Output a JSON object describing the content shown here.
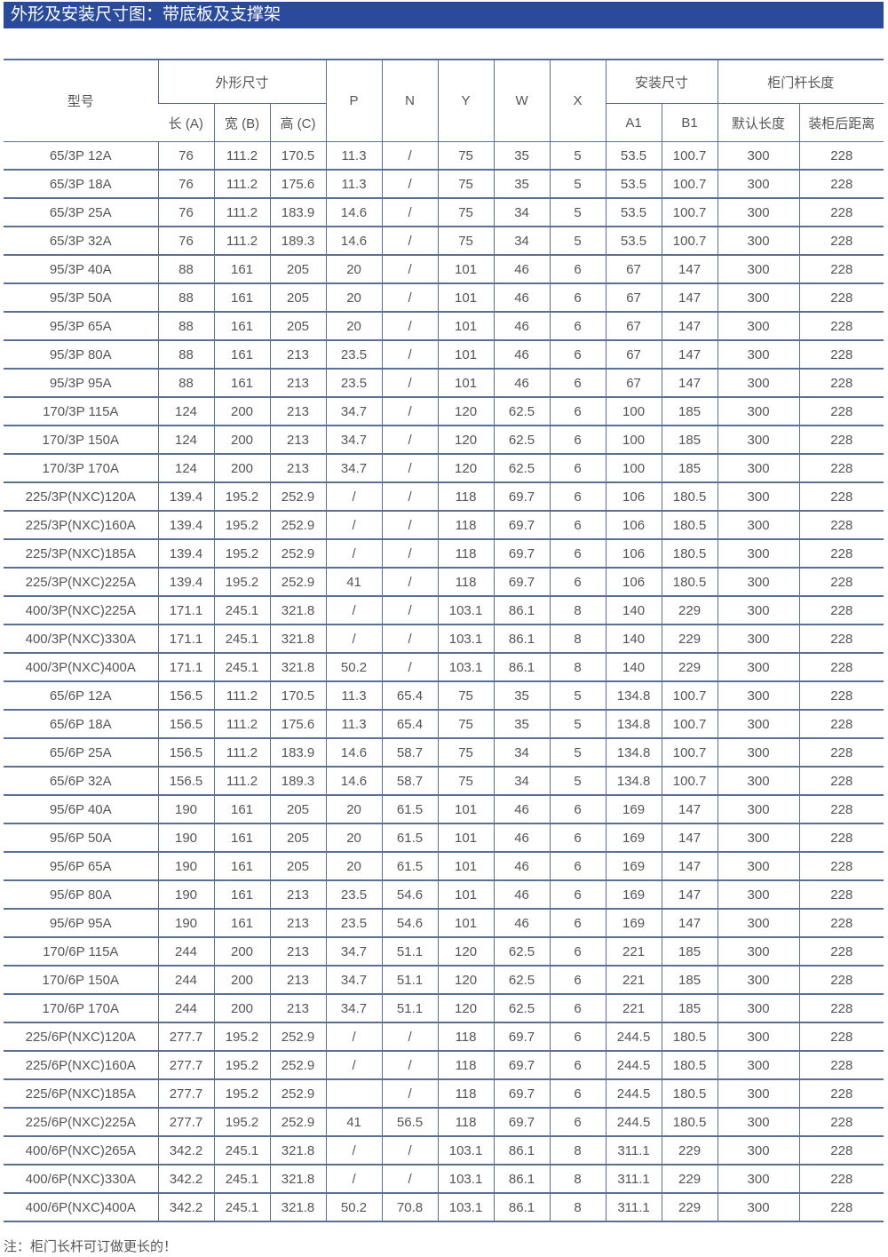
{
  "title": "外形及安装尺寸图：带底板及支撑架",
  "header": {
    "model": "型号",
    "outer": "外形尺寸",
    "length": "长 (A)",
    "width": "宽 (B)",
    "height": "高 (C)",
    "P": "P",
    "N": "N",
    "Y": "Y",
    "W": "W",
    "X": "X",
    "install": "安装尺寸",
    "A1": "A1",
    "B1": "B1",
    "rod": "柜门杆长度",
    "default_len": "默认长度",
    "rear_dist": "装柜后距离"
  },
  "rows": [
    [
      "65/3P 12A",
      "76",
      "111.2",
      "170.5",
      "11.3",
      "/",
      "75",
      "35",
      "5",
      "53.5",
      "100.7",
      "300",
      "228"
    ],
    [
      "65/3P 18A",
      "76",
      "111.2",
      "175.6",
      "11.3",
      "/",
      "75",
      "35",
      "5",
      "53.5",
      "100.7",
      "300",
      "228"
    ],
    [
      "65/3P 25A",
      "76",
      "111.2",
      "183.9",
      "14.6",
      "/",
      "75",
      "34",
      "5",
      "53.5",
      "100.7",
      "300",
      "228"
    ],
    [
      "65/3P 32A",
      "76",
      "111.2",
      "189.3",
      "14.6",
      "/",
      "75",
      "34",
      "5",
      "53.5",
      "100.7",
      "300",
      "228"
    ],
    [
      "95/3P 40A",
      "88",
      "161",
      "205",
      "20",
      "/",
      "101",
      "46",
      "6",
      "67",
      "147",
      "300",
      "228"
    ],
    [
      "95/3P 50A",
      "88",
      "161",
      "205",
      "20",
      "/",
      "101",
      "46",
      "6",
      "67",
      "147",
      "300",
      "228"
    ],
    [
      "95/3P 65A",
      "88",
      "161",
      "205",
      "20",
      "/",
      "101",
      "46",
      "6",
      "67",
      "147",
      "300",
      "228"
    ],
    [
      "95/3P 80A",
      "88",
      "161",
      "213",
      "23.5",
      "/",
      "101",
      "46",
      "6",
      "67",
      "147",
      "300",
      "228"
    ],
    [
      "95/3P 95A",
      "88",
      "161",
      "213",
      "23.5",
      "/",
      "101",
      "46",
      "6",
      "67",
      "147",
      "300",
      "228"
    ],
    [
      "170/3P 115A",
      "124",
      "200",
      "213",
      "34.7",
      "/",
      "120",
      "62.5",
      "6",
      "100",
      "185",
      "300",
      "228"
    ],
    [
      "170/3P 150A",
      "124",
      "200",
      "213",
      "34.7",
      "/",
      "120",
      "62.5",
      "6",
      "100",
      "185",
      "300",
      "228"
    ],
    [
      "170/3P 170A",
      "124",
      "200",
      "213",
      "34.7",
      "/",
      "120",
      "62.5",
      "6",
      "100",
      "185",
      "300",
      "228"
    ],
    [
      "225/3P(NXC)120A",
      "139.4",
      "195.2",
      "252.9",
      "/",
      "/",
      "118",
      "69.7",
      "6",
      "106",
      "180.5",
      "300",
      "228"
    ],
    [
      "225/3P(NXC)160A",
      "139.4",
      "195.2",
      "252.9",
      "/",
      "/",
      "118",
      "69.7",
      "6",
      "106",
      "180.5",
      "300",
      "228"
    ],
    [
      "225/3P(NXC)185A",
      "139.4",
      "195.2",
      "252.9",
      "/",
      "/",
      "118",
      "69.7",
      "6",
      "106",
      "180.5",
      "300",
      "228"
    ],
    [
      "225/3P(NXC)225A",
      "139.4",
      "195.2",
      "252.9",
      "41",
      "/",
      "118",
      "69.7",
      "6",
      "106",
      "180.5",
      "300",
      "228"
    ],
    [
      "400/3P(NXC)225A",
      "171.1",
      "245.1",
      "321.8",
      "/",
      "/",
      "103.1",
      "86.1",
      "8",
      "140",
      "229",
      "300",
      "228"
    ],
    [
      "400/3P(NXC)330A",
      "171.1",
      "245.1",
      "321.8",
      "/",
      "/",
      "103.1",
      "86.1",
      "8",
      "140",
      "229",
      "300",
      "228"
    ],
    [
      "400/3P(NXC)400A",
      "171.1",
      "245.1",
      "321.8",
      "50.2",
      "/",
      "103.1",
      "86.1",
      "8",
      "140",
      "229",
      "300",
      "228"
    ],
    [
      "65/6P 12A",
      "156.5",
      "111.2",
      "170.5",
      "11.3",
      "65.4",
      "75",
      "35",
      "5",
      "134.8",
      "100.7",
      "300",
      "228"
    ],
    [
      "65/6P 18A",
      "156.5",
      "111.2",
      "175.6",
      "11.3",
      "65.4",
      "75",
      "35",
      "5",
      "134.8",
      "100.7",
      "300",
      "228"
    ],
    [
      "65/6P 25A",
      "156.5",
      "111.2",
      "183.9",
      "14.6",
      "58.7",
      "75",
      "34",
      "5",
      "134.8",
      "100.7",
      "300",
      "228"
    ],
    [
      "65/6P 32A",
      "156.5",
      "111.2",
      "189.3",
      "14.6",
      "58.7",
      "75",
      "34",
      "5",
      "134.8",
      "100.7",
      "300",
      "228"
    ],
    [
      "95/6P 40A",
      "190",
      "161",
      "205",
      "20",
      "61.5",
      "101",
      "46",
      "6",
      "169",
      "147",
      "300",
      "228"
    ],
    [
      "95/6P 50A",
      "190",
      "161",
      "205",
      "20",
      "61.5",
      "101",
      "46",
      "6",
      "169",
      "147",
      "300",
      "228"
    ],
    [
      "95/6P 65A",
      "190",
      "161",
      "205",
      "20",
      "61.5",
      "101",
      "46",
      "6",
      "169",
      "147",
      "300",
      "228"
    ],
    [
      "95/6P 80A",
      "190",
      "161",
      "213",
      "23.5",
      "54.6",
      "101",
      "46",
      "6",
      "169",
      "147",
      "300",
      "228"
    ],
    [
      "95/6P 95A",
      "190",
      "161",
      "213",
      "23.5",
      "54.6",
      "101",
      "46",
      "6",
      "169",
      "147",
      "300",
      "228"
    ],
    [
      "170/6P 115A",
      "244",
      "200",
      "213",
      "34.7",
      "51.1",
      "120",
      "62.5",
      "6",
      "221",
      "185",
      "300",
      "228"
    ],
    [
      "170/6P 150A",
      "244",
      "200",
      "213",
      "34.7",
      "51.1",
      "120",
      "62.5",
      "6",
      "221",
      "185",
      "300",
      "228"
    ],
    [
      "170/6P 170A",
      "244",
      "200",
      "213",
      "34.7",
      "51.1",
      "120",
      "62.5",
      "6",
      "221",
      "185",
      "300",
      "228"
    ],
    [
      "225/6P(NXC)120A",
      "277.7",
      "195.2",
      "252.9",
      "/",
      "/",
      "118",
      "69.7",
      "6",
      "244.5",
      "180.5",
      "300",
      "228"
    ],
    [
      "225/6P(NXC)160A",
      "277.7",
      "195.2",
      "252.9",
      "/",
      "/",
      "118",
      "69.7",
      "6",
      "244.5",
      "180.5",
      "300",
      "228"
    ],
    [
      "225/6P(NXC)185A",
      "277.7",
      "195.2",
      "252.9",
      "",
      "/",
      "118",
      "69.7",
      "6",
      "244.5",
      "180.5",
      "300",
      "228"
    ],
    [
      "225/6P(NXC)225A",
      "277.7",
      "195.2",
      "252.9",
      "41",
      "56.5",
      "118",
      "69.7",
      "6",
      "244.5",
      "180.5",
      "300",
      "228"
    ],
    [
      "400/6P(NXC)265A",
      "342.2",
      "245.1",
      "321.8",
      "/",
      "/",
      "103.1",
      "86.1",
      "8",
      "311.1",
      "229",
      "300",
      "228"
    ],
    [
      "400/6P(NXC)330A",
      "342.2",
      "245.1",
      "321.8",
      "/",
      "/",
      "103.1",
      "86.1",
      "8",
      "311.1",
      "229",
      "300",
      "228"
    ],
    [
      "400/6P(NXC)400A",
      "342.2",
      "245.1",
      "321.8",
      "50.2",
      "70.8",
      "103.1",
      "86.1",
      "8",
      "311.1",
      "229",
      "300",
      "228"
    ]
  ],
  "note": "注：柜门长杆可订做更长的！",
  "colors": {
    "title_bar": "#2a4a9c",
    "rule": "#5a6f96",
    "text": "#555555"
  }
}
